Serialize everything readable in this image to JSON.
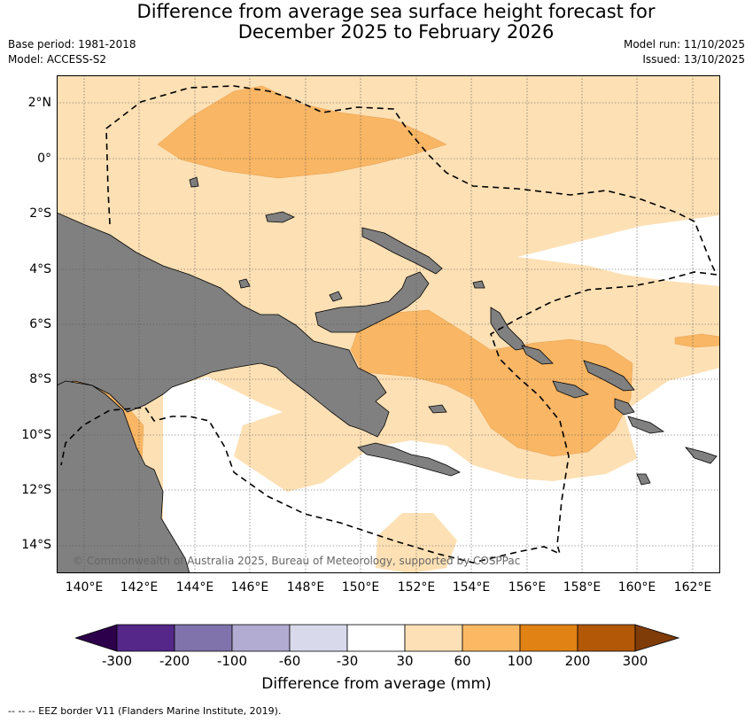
{
  "title": {
    "line1": "Difference from average sea surface height forecast for",
    "line2": "December 2025 to February 2026"
  },
  "meta": {
    "base_period": "Base period: 1981-2018",
    "model": "Model: ACCESS-S2",
    "model_run": "Model run: 11/10/2025",
    "issued": "Issued: 13/10/2025"
  },
  "axes": {
    "lat_labels": [
      "2°N",
      "0°",
      "2°S",
      "4°S",
      "6°S",
      "8°S",
      "10°S",
      "12°S",
      "14°S"
    ],
    "lon_labels": [
      "140°E",
      "142°E",
      "144°E",
      "146°E",
      "148°E",
      "150°E",
      "152°E",
      "154°E",
      "156°E",
      "158°E",
      "160°E",
      "162°E"
    ]
  },
  "copyright": "© Commonwealth of Australia 2025, Bureau of Meteorology, supported by COSPPac",
  "colorbar": {
    "title": "Difference from average (mm)",
    "tick_labels": [
      "-300",
      "-200",
      "-100",
      "-60",
      "-30",
      "30",
      "60",
      "100",
      "200",
      "300"
    ],
    "colors": {
      "below_min": "#2d004b",
      "b1": "#542788",
      "b2": "#8073ac",
      "b3": "#b2abd2",
      "b4": "#d8daeb",
      "b5": "#ffffff",
      "b6": "#fee0b6",
      "b7": "#fdb863",
      "b8": "#e08214",
      "b9": "#b35806",
      "above_max": "#7f3b08"
    }
  },
  "map_colors": {
    "land": "#808080",
    "band_30_60": "#fde0b4",
    "band_60_100": "#f9b664",
    "band_neutral": "#ffffff"
  },
  "footnote": "--  --  -- EEZ border V11 (Flanders Marine Institute, 2019)."
}
